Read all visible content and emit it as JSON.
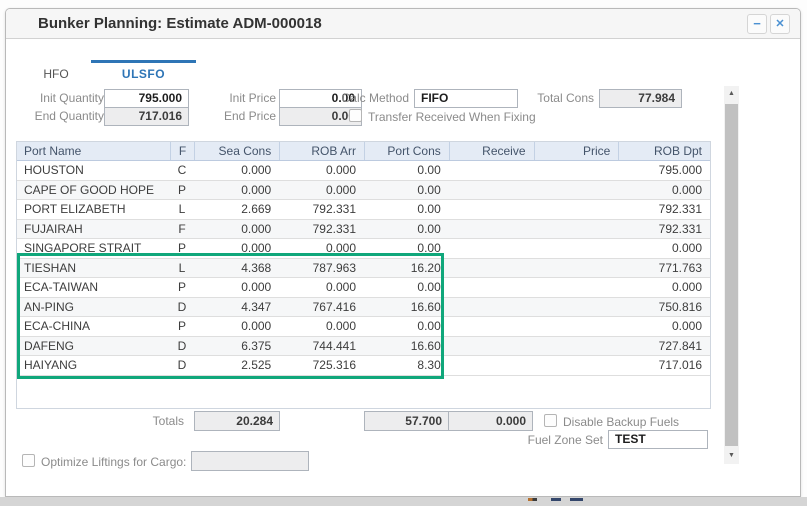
{
  "window": {
    "title": "Bunker Planning: Estimate ADM-000018",
    "minimize_glyph": "−",
    "close_glyph": "✕"
  },
  "tabs": [
    {
      "label": "HFO",
      "active": false
    },
    {
      "label": "ULSFO",
      "active": true
    }
  ],
  "fields": {
    "init_quantity": {
      "label": "Init Quantity",
      "value": "795.000",
      "readonly": false
    },
    "end_quantity": {
      "label": "End Quantity",
      "value": "717.016",
      "readonly": true
    },
    "init_price": {
      "label": "Init Price",
      "value": "0.00",
      "readonly": false
    },
    "end_price": {
      "label": "End Price",
      "value": "0.00",
      "readonly": true
    },
    "calc_method": {
      "label": "Calc Method",
      "value": "FIFO",
      "readonly": false
    },
    "total_cons": {
      "label": "Total Cons",
      "value": "77.984",
      "readonly": true
    },
    "transfer_received": {
      "label": "Transfer Received When Fixing",
      "checked": false
    }
  },
  "table": {
    "columns": [
      "Port Name",
      "F",
      "Sea Cons",
      "ROB Arr",
      "Port Cons",
      "Receive",
      "Price",
      "ROB Dpt"
    ],
    "rows": [
      [
        "HOUSTON",
        "C",
        "0.000",
        "0.000",
        "0.00",
        "",
        "",
        "795.000"
      ],
      [
        "CAPE OF GOOD HOPE",
        "P",
        "0.000",
        "0.000",
        "0.00",
        "",
        "",
        "0.000"
      ],
      [
        "PORT ELIZABETH",
        "L",
        "2.669",
        "792.331",
        "0.00",
        "",
        "",
        "792.331"
      ],
      [
        "FUJAIRAH",
        "F",
        "0.000",
        "792.331",
        "0.00",
        "",
        "",
        "792.331"
      ],
      [
        "SINGAPORE STRAIT",
        "P",
        "0.000",
        "0.000",
        "0.00",
        "",
        "",
        "0.000"
      ],
      [
        "TIESHAN",
        "L",
        "4.368",
        "787.963",
        "16.20",
        "",
        "",
        "771.763"
      ],
      [
        "ECA-TAIWAN",
        "P",
        "0.000",
        "0.000",
        "0.00",
        "",
        "",
        "0.000"
      ],
      [
        "AN-PING",
        "D",
        "4.347",
        "767.416",
        "16.60",
        "",
        "",
        "750.816"
      ],
      [
        "ECA-CHINA",
        "P",
        "0.000",
        "0.000",
        "0.00",
        "",
        "",
        "0.000"
      ],
      [
        "DAFENG",
        "D",
        "6.375",
        "744.441",
        "16.60",
        "",
        "",
        "727.841"
      ],
      [
        "HAIYANG",
        "D",
        "2.525",
        "725.316",
        "8.30",
        "",
        "",
        "717.016"
      ]
    ],
    "highlighted_rows": [
      "TIESHAN",
      "ECA-TAIWAN",
      "AN-PING",
      "ECA-CHINA",
      "DAFENG",
      "HAIYANG"
    ],
    "highlight_color": "#10a77b"
  },
  "totals": {
    "label": "Totals",
    "sea_cons": "20.284",
    "port_cons": "57.700",
    "receive": "0.000"
  },
  "footer": {
    "disable_backup_fuels": {
      "label": "Disable Backup Fuels",
      "checked": false
    },
    "fuel_zone_set": {
      "label": "Fuel Zone Set",
      "value": "TEST"
    },
    "optimize_liftings": {
      "label": "Optimize Liftings for Cargo:",
      "checked": false,
      "value": ""
    }
  },
  "scrollbar": {
    "up_glyph": "▲",
    "down_glyph": "▼"
  },
  "colors": {
    "accent_blue": "#2e75b6",
    "titlebar_button_blue": "#4a90d2",
    "header_bg": "#e4ebf5",
    "header_text": "#44546a",
    "highlight_green": "#10a77b",
    "readonly_bg": "#ededee"
  }
}
